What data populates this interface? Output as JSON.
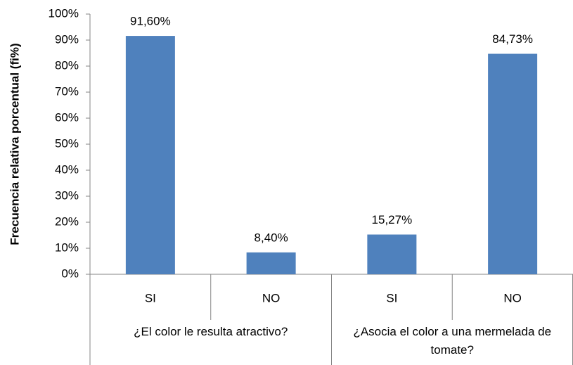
{
  "chart_data": {
    "type": "bar",
    "y_label": "Frecuencia relativa porcentual (fi%)",
    "categories": [
      "SI",
      "NO",
      "SI",
      "NO"
    ],
    "group_labels": [
      "¿El color le resulta atractivo?",
      "¿Asocia el color a una mermelada de tomate?"
    ],
    "values": [
      91.6,
      8.4,
      15.27,
      84.73
    ],
    "value_labels": [
      "91,60%",
      "8,40%",
      "15,27%",
      "84,73%"
    ],
    "color": "#4f81bd",
    "ylim": [
      0,
      100
    ],
    "yticks": [
      {
        "value": 0,
        "label": "0%"
      },
      {
        "value": 10,
        "label": "10%"
      },
      {
        "value": 20,
        "label": "20%"
      },
      {
        "value": 30,
        "label": "30%"
      },
      {
        "value": 40,
        "label": "40%"
      },
      {
        "value": 50,
        "label": "50%"
      },
      {
        "value": 60,
        "label": "60%"
      },
      {
        "value": 70,
        "label": "70%"
      },
      {
        "value": 80,
        "label": "80%"
      },
      {
        "value": 90,
        "label": "90%"
      },
      {
        "value": 100,
        "label": "100%"
      }
    ],
    "grid": false
  }
}
